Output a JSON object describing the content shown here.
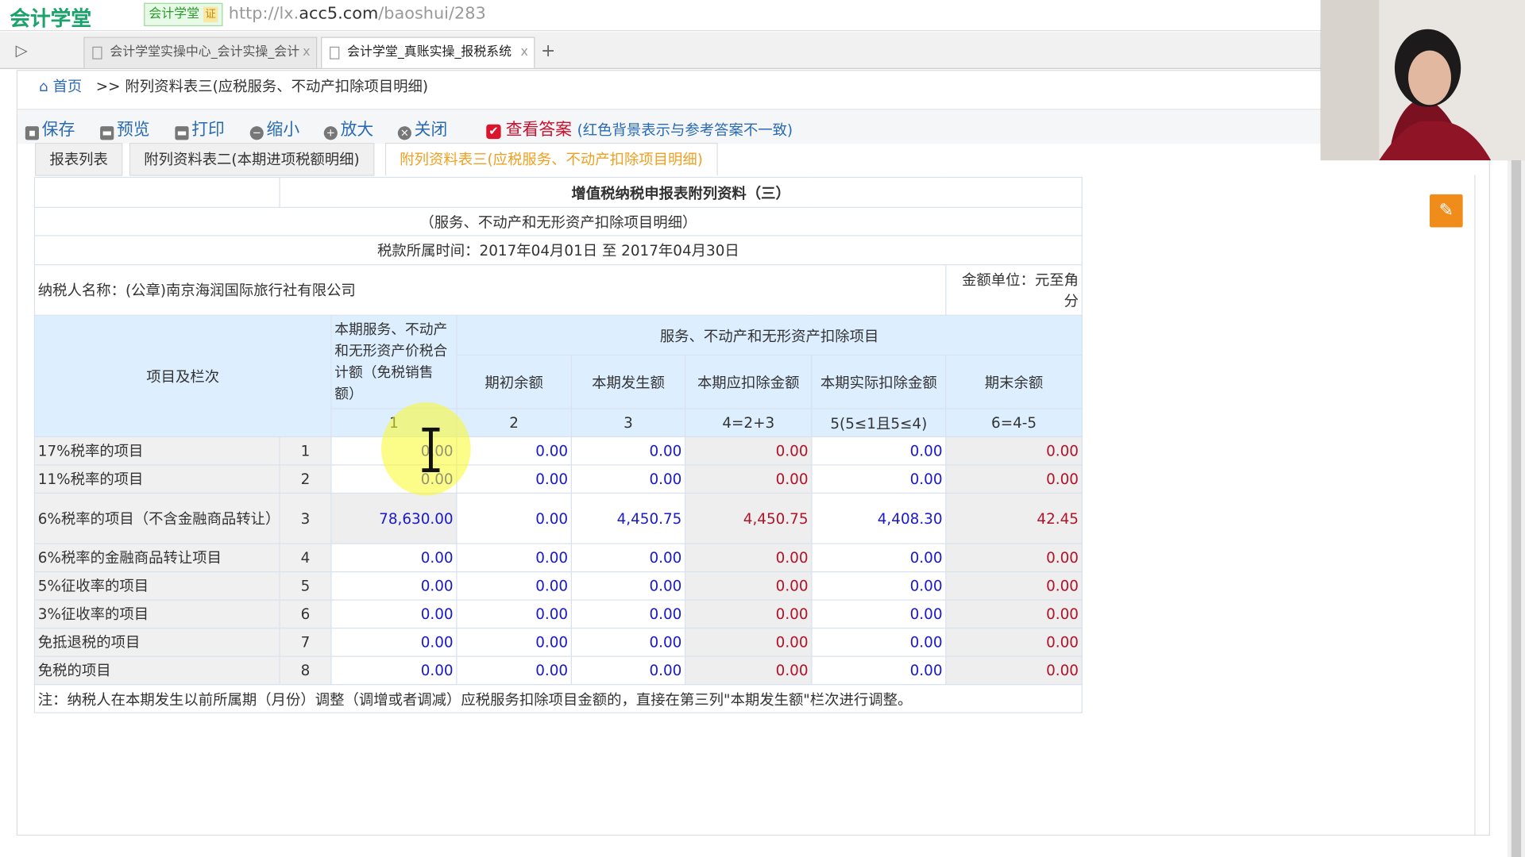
{
  "browser": {
    "logo": "会计学堂",
    "site_badge": "会计学堂",
    "cert": "证",
    "url_prefix": "http://lx.",
    "url_domain": "acc5.com",
    "url_path": "/baoshui/283",
    "tabs": [
      {
        "label": "会计学堂实操中心_会计实操_会计"
      },
      {
        "label": "会计学堂_真账实操_报税系统"
      }
    ],
    "new_tab": "+",
    "close": "x"
  },
  "breadcrumb": {
    "home": "首页",
    "sep": ">>",
    "current": "附列资料表三(应税服务、不动产扣除项目明细)"
  },
  "toolbar": {
    "save": "保存",
    "preview": "预览",
    "print": "打印",
    "zoom_out": "缩小",
    "zoom_in": "放大",
    "close": "关闭",
    "show_answer": "查看答案",
    "show_answer_checked": true,
    "hint": "(红色背景表示与参考答案不一致)"
  },
  "page_tabs": [
    "报表列表",
    "附列资料表二(本期进项税额明细)",
    "附列资料表三(应税服务、不动产扣除项目明细)"
  ],
  "form": {
    "title": "增值税纳税申报表附列资料（三）",
    "subtitle": "（服务、不动产和无形资产扣除项目明细）",
    "period": "税款所属时间：2017年04月01日 至 2017年04月30日",
    "taxpayer": "纳税人名称：(公章)南京海润国际旅行社有限公司",
    "unit": "金额单位：元至角分",
    "headers": {
      "item": "项目及栏次",
      "col1": "本期服务、不动产和无形资产价税合计额（免税销售额）",
      "group": "服务、不动产和无形资产扣除项目",
      "col2": "期初余额",
      "col3": "本期发生额",
      "col4": "本期应扣除金额",
      "col5": "本期实际扣除金额",
      "col6": "期末余额",
      "idx": [
        "1",
        "2",
        "3",
        "4=2+3",
        "5(5≤1且5≤4)",
        "6=4-5"
      ]
    },
    "rows": [
      {
        "label": "17%税率的项目",
        "no": "1",
        "v": [
          "0.00",
          "0.00",
          "0.00",
          "0.00",
          "0.00",
          "0.00"
        ]
      },
      {
        "label": "11%税率的项目",
        "no": "2",
        "v": [
          "0.00",
          "0.00",
          "0.00",
          "0.00",
          "0.00",
          "0.00"
        ]
      },
      {
        "label": "6%税率的项目（不含金融商品转让）",
        "no": "3",
        "v": [
          "78,630.00",
          "0.00",
          "4,450.75",
          "4,450.75",
          "4,408.30",
          "42.45"
        ]
      },
      {
        "label": "6%税率的金融商品转让项目",
        "no": "4",
        "v": [
          "0.00",
          "0.00",
          "0.00",
          "0.00",
          "0.00",
          "0.00"
        ]
      },
      {
        "label": "5%征收率的项目",
        "no": "5",
        "v": [
          "0.00",
          "0.00",
          "0.00",
          "0.00",
          "0.00",
          "0.00"
        ]
      },
      {
        "label": "3%征收率的项目",
        "no": "6",
        "v": [
          "0.00",
          "0.00",
          "0.00",
          "0.00",
          "0.00",
          "0.00"
        ]
      },
      {
        "label": "免抵退税的项目",
        "no": "7",
        "v": [
          "0.00",
          "0.00",
          "0.00",
          "0.00",
          "0.00",
          "0.00"
        ]
      },
      {
        "label": "免税的项目",
        "no": "8",
        "v": [
          "0.00",
          "0.00",
          "0.00",
          "0.00",
          "0.00",
          "0.00"
        ]
      }
    ],
    "note": "注：纳税人在本期发生以前所属期（月份）调整（调增或者调减）应税服务扣除项目金额的，直接在第三列\"本期发生额\"栏次进行调整。"
  },
  "colors": {
    "accent": "#2a6ab3",
    "header_bg": "#ddeeff",
    "editable_text": "#1a1acc",
    "computed_text": "#b0142a",
    "active_tab": "#f0a020",
    "brush_button": "#f08c1a"
  }
}
